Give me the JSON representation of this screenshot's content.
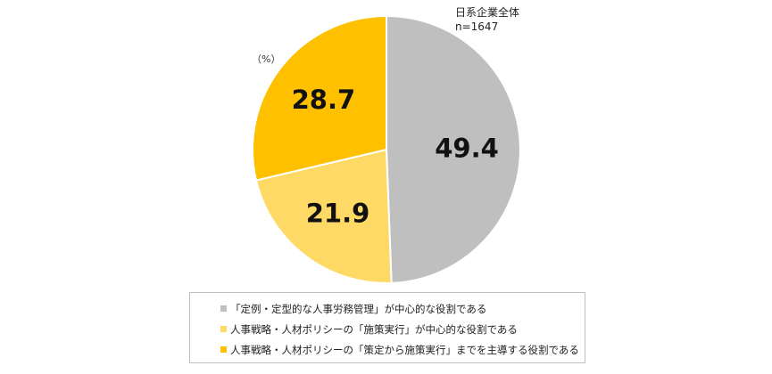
{
  "sample": {
    "group": "日系企業全体",
    "n": "n=1647"
  },
  "unit": "（%）",
  "chart_data": {
    "type": "pie",
    "start": "12 o'clock",
    "direction": "clockwise",
    "slices": [
      {
        "value": 49.4,
        "label": "49.4",
        "color": "#bfbfbf",
        "legend": "「定例・定型的な人事労務管理」が中心的な役割である"
      },
      {
        "value": 21.9,
        "label": "21.9",
        "color": "#ffd966",
        "legend": "人事戦略・人材ポリシーの「施策実行」が中心的な役割である"
      },
      {
        "value": 28.7,
        "label": "28.7",
        "color": "#ffc000",
        "legend": "人事戦略・人材ポリシーの「策定から施策実行」までを主導する役割である"
      }
    ],
    "legend_position": "bottom",
    "slice_border_color": "#ffffff"
  }
}
